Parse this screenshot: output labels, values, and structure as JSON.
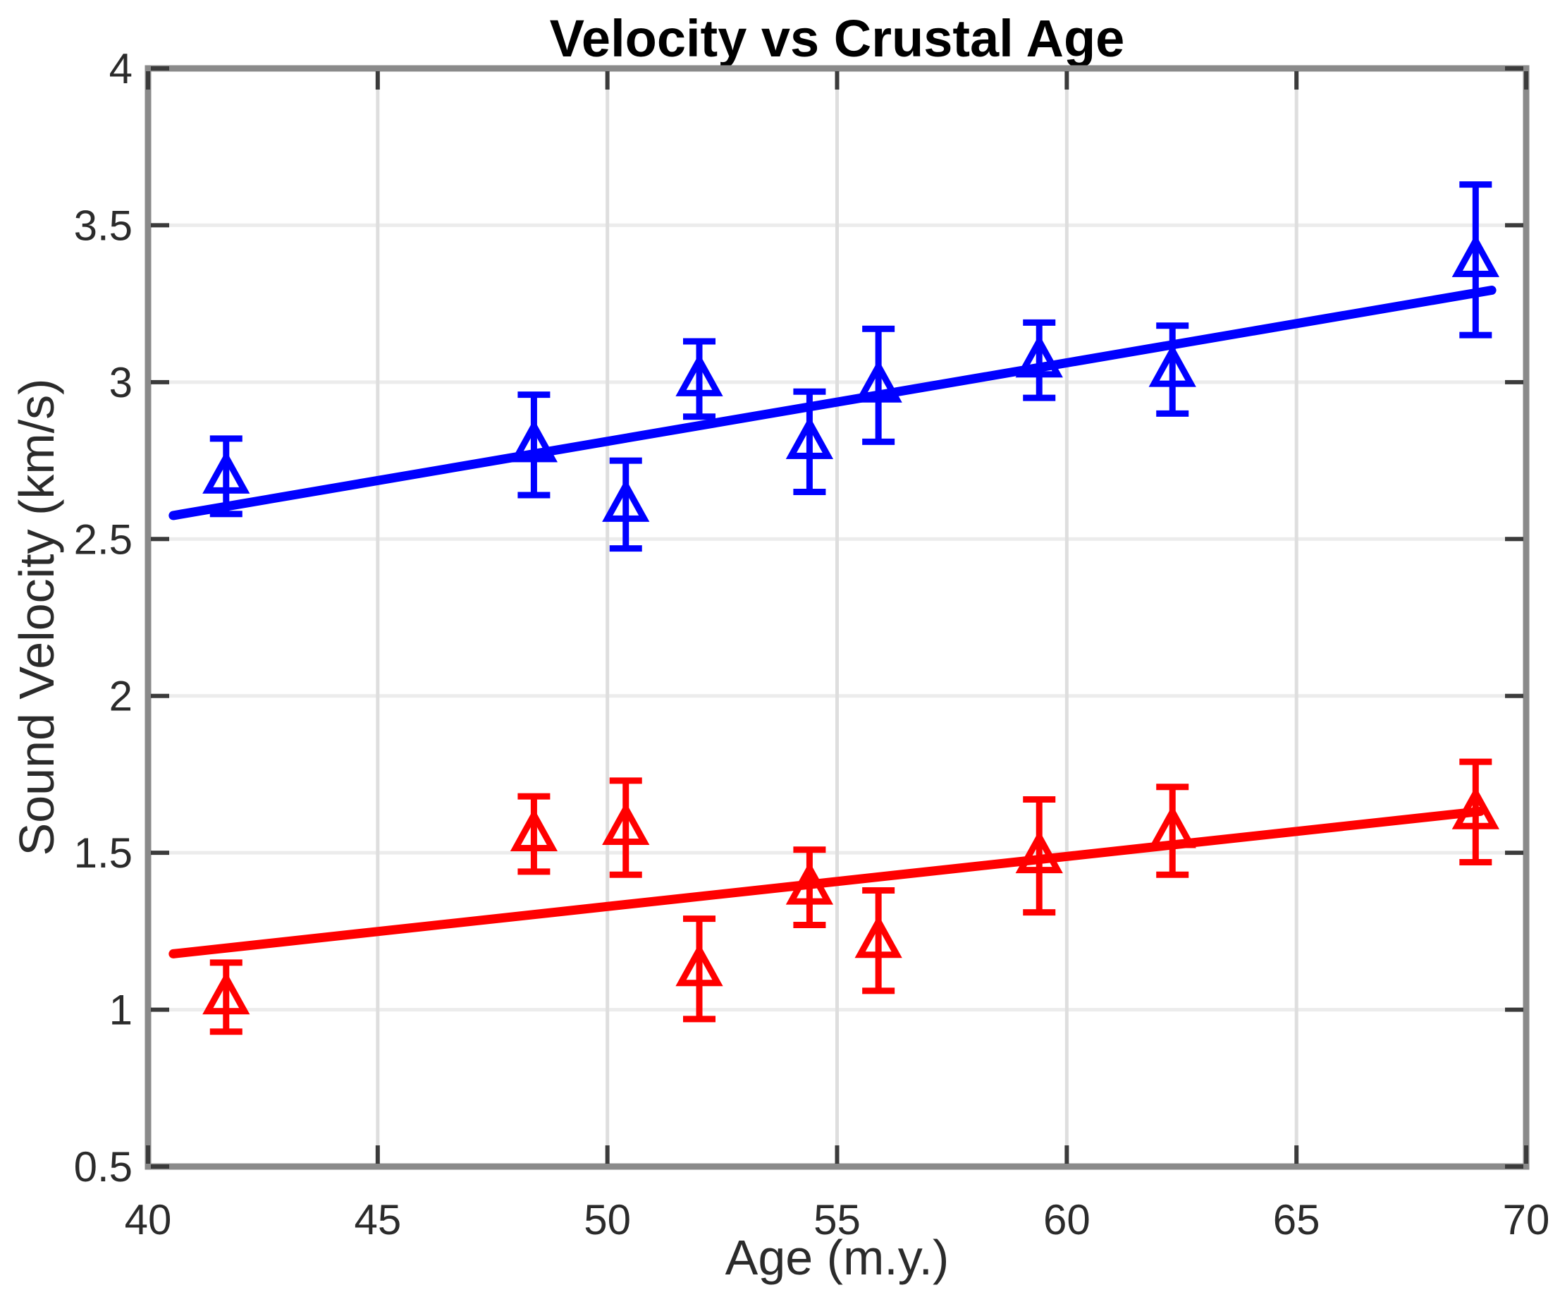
{
  "figure": {
    "title": "Velocity vs Crustal Age",
    "xlabel": "Age (m.y.)",
    "ylabel": "Sound Velocity (km/s)"
  },
  "chart_data": {
    "type": "scatter",
    "title": "Velocity vs Crustal Age",
    "xlabel": "Age (m.y.)",
    "ylabel": "Sound Velocity (km/s)",
    "xlim": [
      40,
      70
    ],
    "ylim": [
      0.5,
      4
    ],
    "xticks": [
      40,
      45,
      50,
      55,
      60,
      65,
      70
    ],
    "yticks": [
      0.5,
      1,
      1.5,
      2,
      2.5,
      3,
      3.5,
      4
    ],
    "grid": true,
    "legend": null,
    "marker": "triangle-up-open",
    "x": [
      41.7,
      48.4,
      50.4,
      52.0,
      54.4,
      55.9,
      59.4,
      62.3,
      68.9
    ],
    "series": [
      {
        "name": "blue",
        "color": "#0000FF",
        "y": [
          2.7,
          2.8,
          2.61,
          3.01,
          2.81,
          2.99,
          3.07,
          3.04,
          3.39
        ],
        "yerr": [
          0.12,
          0.16,
          0.14,
          0.12,
          0.16,
          0.18,
          0.12,
          0.14,
          0.24
        ],
        "fit_line": {
          "x": [
            40.55,
            69.25
          ],
          "y": [
            2.575,
            3.293
          ]
        }
      },
      {
        "name": "red",
        "color": "#FF0000",
        "y": [
          1.04,
          1.56,
          1.58,
          1.13,
          1.39,
          1.22,
          1.49,
          1.57,
          1.63
        ],
        "yerr": [
          0.11,
          0.12,
          0.15,
          0.16,
          0.12,
          0.16,
          0.18,
          0.14,
          0.16
        ],
        "fit_line": {
          "x": [
            40.55,
            69.0
          ],
          "y": [
            1.178,
            1.632
          ]
        }
      }
    ]
  },
  "style": {
    "axis_box_color": "#8A8A8A",
    "tick_color": "#3B3B3B",
    "grid_vertical_color": "#DEDEDE",
    "grid_horizontal_color": "#ECECEC",
    "tick_label_color": "#2B2B2B",
    "title_color": "#000000",
    "background": "#FFFFFF"
  }
}
